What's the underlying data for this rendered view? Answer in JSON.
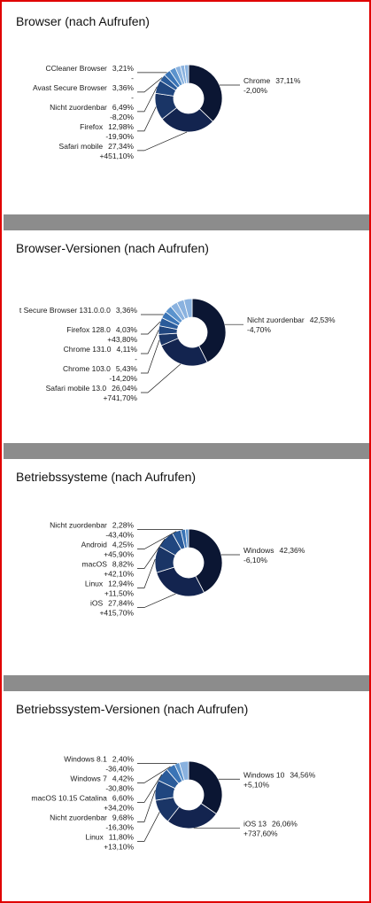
{
  "colors": {
    "frame_border": "#e00000",
    "separator": "#8c8c8c",
    "slice_palette": [
      "#0b1633",
      "#13244f",
      "#1a3566",
      "#20467f",
      "#2a5b9a",
      "#3a74b6",
      "#5b93cd",
      "#8ab2df"
    ]
  },
  "chart_data": [
    {
      "type": "pie",
      "title": "Browser (nach Aufrufen)",
      "slices": [
        {
          "label": "Chrome",
          "value": 37.11,
          "share": "37,11%",
          "change": "-2,00%"
        },
        {
          "label": "Safari mobile",
          "value": 27.34,
          "share": "27,34%",
          "change": "+451,10%"
        },
        {
          "label": "Firefox",
          "value": 12.98,
          "share": "12,98%",
          "change": "-19,90%"
        },
        {
          "label": "Nicht zuordenbar",
          "value": 6.49,
          "share": "6,49%",
          "change": "-8,20%"
        },
        {
          "label": "Avast Secure Browser",
          "value": 3.36,
          "share": "3,36%",
          "change": "-"
        },
        {
          "label": "CCleaner Browser",
          "value": 3.21,
          "share": "3,21%",
          "change": "-"
        },
        {
          "label": "",
          "value": 3.0,
          "share": "",
          "change": ""
        },
        {
          "label": "",
          "value": 2.5,
          "share": "",
          "change": ""
        },
        {
          "label": "",
          "value": 2.0,
          "share": "",
          "change": ""
        },
        {
          "label": "",
          "value": 2.01,
          "share": "",
          "change": ""
        }
      ]
    },
    {
      "type": "pie",
      "title": "Browser-Versionen (nach Aufrufen)",
      "slices": [
        {
          "label": "Nicht zuordenbar",
          "value": 42.53,
          "share": "42,53%",
          "change": "-4,70%"
        },
        {
          "label": "Safari mobile 13.0",
          "value": 26.04,
          "share": "26,04%",
          "change": "+741,70%"
        },
        {
          "label": "Chrome 103.0",
          "value": 5.43,
          "share": "5,43%",
          "change": "-14,20%"
        },
        {
          "label": "Chrome 131.0",
          "value": 4.11,
          "share": "4,11%",
          "change": "-"
        },
        {
          "label": "Firefox 128.0",
          "value": 4.03,
          "share": "4,03%",
          "change": "+43,80%"
        },
        {
          "label": "t Secure Browser 131.0.0.0",
          "value": 3.36,
          "share": "3,36%",
          "change": ""
        },
        {
          "label": "",
          "value": 3.5,
          "share": "",
          "change": ""
        },
        {
          "label": "",
          "value": 3.5,
          "share": "",
          "change": ""
        },
        {
          "label": "",
          "value": 3.5,
          "share": "",
          "change": ""
        },
        {
          "label": "",
          "value": 4.0,
          "share": "",
          "change": ""
        }
      ]
    },
    {
      "type": "pie",
      "title": "Betriebssysteme (nach Aufrufen)",
      "slices": [
        {
          "label": "Windows",
          "value": 42.36,
          "share": "42,36%",
          "change": "-6,10%"
        },
        {
          "label": "iOS",
          "value": 27.84,
          "share": "27,84%",
          "change": "+415,70%"
        },
        {
          "label": "Linux",
          "value": 12.94,
          "share": "12,94%",
          "change": "+11,50%"
        },
        {
          "label": "macOS",
          "value": 8.82,
          "share": "8,82%",
          "change": "+42,10%"
        },
        {
          "label": "Android",
          "value": 4.25,
          "share": "4,25%",
          "change": "+45,90%"
        },
        {
          "label": "Nicht zuordenbar",
          "value": 2.28,
          "share": "2,28%",
          "change": "-43,40%"
        },
        {
          "label": "",
          "value": 1.51,
          "share": "",
          "change": ""
        }
      ]
    },
    {
      "type": "pie",
      "title": "Betriebssystem-Versionen (nach Aufrufen)",
      "slices": [
        {
          "label": "Windows 10",
          "value": 34.56,
          "share": "34,56%",
          "change": "+5,10%"
        },
        {
          "label": "iOS 13",
          "value": 26.06,
          "share": "26,06%",
          "change": "+737,60%"
        },
        {
          "label": "Linux",
          "value": 11.8,
          "share": "11,80%",
          "change": "+13,10%"
        },
        {
          "label": "Nicht zuordenbar",
          "value": 9.68,
          "share": "9,68%",
          "change": "-16,30%"
        },
        {
          "label": "macOS 10.15 Catalina",
          "value": 6.6,
          "share": "6,60%",
          "change": "+34,20%"
        },
        {
          "label": "Windows 7",
          "value": 4.42,
          "share": "4,42%",
          "change": "-30,80%"
        },
        {
          "label": "Windows 8.1",
          "value": 2.4,
          "share": "2,40%",
          "change": "-36,40%"
        },
        {
          "label": "",
          "value": 4.48,
          "share": "",
          "change": ""
        }
      ]
    }
  ]
}
